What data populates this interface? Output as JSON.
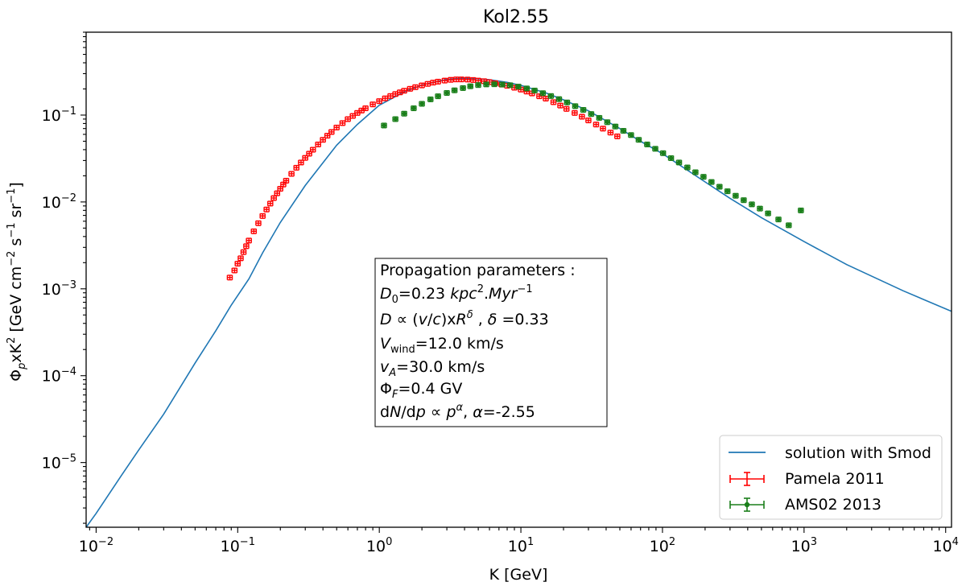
{
  "chart_data": {
    "type": "scatter",
    "title": "Kol2.55",
    "xlabel": "K [GeV]",
    "ylabel": "Φ_p xK² [GeV cm⁻² s⁻¹ sr⁻¹]",
    "xscale": "log",
    "yscale": "log",
    "xlim": [
      0.0085,
      11000
    ],
    "ylim": [
      1.8e-06,
      0.9
    ],
    "x_ticks": [
      {
        "value": 0.01,
        "base": "10",
        "exp": "−2"
      },
      {
        "value": 0.1,
        "base": "10",
        "exp": "−1"
      },
      {
        "value": 1,
        "base": "10",
        "exp": "0"
      },
      {
        "value": 10,
        "base": "10",
        "exp": "1"
      },
      {
        "value": 100,
        "base": "10",
        "exp": "2"
      },
      {
        "value": 1000,
        "base": "10",
        "exp": "3"
      },
      {
        "value": 10000,
        "base": "10",
        "exp": "4"
      }
    ],
    "y_ticks": [
      {
        "value": 1e-05,
        "base": "10",
        "exp": "−5"
      },
      {
        "value": 0.0001,
        "base": "10",
        "exp": "−4"
      },
      {
        "value": 0.001,
        "base": "10",
        "exp": "−3"
      },
      {
        "value": 0.01,
        "base": "10",
        "exp": "−2"
      },
      {
        "value": 0.1,
        "base": "10",
        "exp": "−1"
      }
    ],
    "grid": false,
    "legend_position": "bottom-right",
    "annotation": {
      "position": "center",
      "lines": [
        "Propagation parameters :",
        "D₀=0.23 kpc².Myr⁻¹",
        "D ∝ (v/c)xR^δ , δ =0.33",
        "V_wind=12.0 km/s",
        "v_A=30.0 km/s",
        "Φ_F=0.4 GV",
        "dN/dp ∝ p^α, α=-2.55"
      ]
    },
    "series": [
      {
        "name": "solution with Smod",
        "kind": "line",
        "color": "#1f77b4",
        "x": [
          0.0085,
          0.01,
          0.015,
          0.02,
          0.03,
          0.05,
          0.07,
          0.09,
          0.12,
          0.15,
          0.2,
          0.3,
          0.5,
          0.7,
          1,
          1.5,
          2,
          3,
          4,
          5,
          6,
          8,
          10,
          15,
          20,
          30,
          50,
          70,
          100,
          200,
          300,
          500,
          1000,
          2000,
          5000,
          11000
        ],
        "y": [
          1.8e-06,
          2.6e-06,
          7e-06,
          1.4e-05,
          3.6e-05,
          0.00014,
          0.00033,
          0.00065,
          0.0013,
          0.0026,
          0.0058,
          0.0155,
          0.045,
          0.078,
          0.13,
          0.185,
          0.222,
          0.258,
          0.266,
          0.262,
          0.255,
          0.238,
          0.22,
          0.18,
          0.15,
          0.112,
          0.07,
          0.05,
          0.036,
          0.017,
          0.011,
          0.0066,
          0.0035,
          0.0019,
          0.00095,
          0.00055
        ]
      },
      {
        "name": "Pamela 2011",
        "kind": "errorbar",
        "color": "#ff0000",
        "x": [
          0.088,
          0.095,
          0.1,
          0.105,
          0.11,
          0.115,
          0.12,
          0.13,
          0.14,
          0.15,
          0.16,
          0.17,
          0.18,
          0.19,
          0.2,
          0.21,
          0.22,
          0.24,
          0.26,
          0.28,
          0.3,
          0.32,
          0.34,
          0.37,
          0.4,
          0.43,
          0.46,
          0.5,
          0.55,
          0.6,
          0.65,
          0.7,
          0.75,
          0.8,
          0.9,
          1.0,
          1.1,
          1.2,
          1.3,
          1.4,
          1.5,
          1.65,
          1.8,
          2.0,
          2.2,
          2.4,
          2.6,
          2.9,
          3.2,
          3.5,
          3.8,
          4.2,
          4.6,
          5.0,
          5.5,
          6.0,
          6.6,
          7.3,
          8.0,
          9.0,
          10,
          11,
          12,
          13.5,
          15,
          17,
          19,
          21,
          24,
          27,
          30,
          34,
          38,
          43,
          48
        ],
        "y": [
          0.00135,
          0.00163,
          0.00195,
          0.00225,
          0.00265,
          0.0031,
          0.0036,
          0.0046,
          0.0057,
          0.0069,
          0.0082,
          0.0096,
          0.0111,
          0.0126,
          0.0142,
          0.0159,
          0.0176,
          0.0211,
          0.0248,
          0.0285,
          0.0322,
          0.036,
          0.04,
          0.046,
          0.052,
          0.058,
          0.064,
          0.072,
          0.081,
          0.09,
          0.098,
          0.106,
          0.113,
          0.12,
          0.133,
          0.145,
          0.156,
          0.166,
          0.175,
          0.183,
          0.191,
          0.201,
          0.21,
          0.22,
          0.229,
          0.237,
          0.243,
          0.25,
          0.255,
          0.258,
          0.258,
          0.257,
          0.254,
          0.25,
          0.246,
          0.24,
          0.233,
          0.225,
          0.218,
          0.207,
          0.197,
          0.187,
          0.178,
          0.165,
          0.155,
          0.141,
          0.129,
          0.118,
          0.106,
          0.096,
          0.087,
          0.078,
          0.07,
          0.063,
          0.057
        ]
      },
      {
        "name": "AMS02 2013",
        "kind": "errorbar",
        "color": "#1a7f1a",
        "x": [
          1.08,
          1.3,
          1.5,
          1.75,
          2.0,
          2.3,
          2.6,
          3.0,
          3.4,
          3.9,
          4.4,
          5.0,
          5.7,
          6.5,
          7.4,
          8.4,
          9.6,
          11,
          12.5,
          14.3,
          16.3,
          18.6,
          21.2,
          24.2,
          27.6,
          31.4,
          35.8,
          40.8,
          46.5,
          53,
          60,
          68,
          78,
          89,
          101,
          115,
          131,
          150,
          171,
          195,
          222,
          253,
          288,
          329,
          375,
          428,
          488,
          557,
          660,
          780,
          950
        ],
        "y": [
          0.076,
          0.09,
          0.104,
          0.12,
          0.135,
          0.152,
          0.165,
          0.18,
          0.193,
          0.205,
          0.215,
          0.222,
          0.226,
          0.227,
          0.225,
          0.221,
          0.213,
          0.203,
          0.192,
          0.179,
          0.166,
          0.153,
          0.14,
          0.127,
          0.115,
          0.103,
          0.093,
          0.083,
          0.074,
          0.066,
          0.059,
          0.052,
          0.046,
          0.041,
          0.0365,
          0.032,
          0.0285,
          0.025,
          0.022,
          0.0195,
          0.017,
          0.015,
          0.0133,
          0.0118,
          0.0105,
          0.0094,
          0.0084,
          0.0074,
          0.0063,
          0.0054,
          0.008
        ]
      }
    ]
  }
}
